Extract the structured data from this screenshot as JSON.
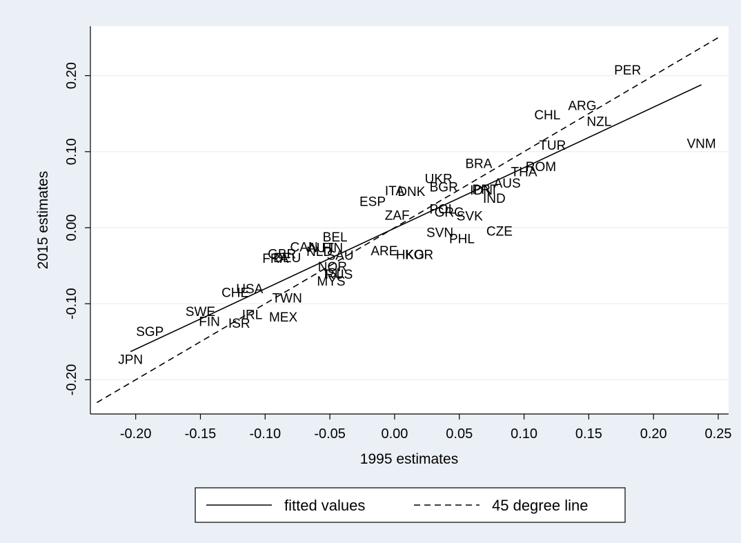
{
  "chart_data": {
    "type": "scatter",
    "xlabel": "1995 estimates",
    "ylabel": "2015 estimates",
    "xlim": [
      -0.235,
      0.258
    ],
    "ylim": [
      -0.245,
      0.265
    ],
    "xticks": [
      -0.2,
      -0.15,
      -0.1,
      -0.05,
      0.0,
      0.05,
      0.1,
      0.15,
      0.2,
      0.25
    ],
    "xtick_labels": [
      "-0.20",
      "-0.15",
      "-0.10",
      "-0.05",
      "0.00",
      "0.05",
      "0.10",
      "0.15",
      "0.20",
      "0.25"
    ],
    "yticks": [
      -0.2,
      -0.1,
      0.0,
      0.1,
      0.2
    ],
    "ytick_labels": [
      "-0.20",
      "-0.10",
      "0.00",
      "0.10",
      "0.20"
    ],
    "grid": true,
    "legend_position": "bottom",
    "points": [
      {
        "label": "PER",
        "x": 0.18,
        "y": 0.208
      },
      {
        "label": "ARG",
        "x": 0.145,
        "y": 0.161
      },
      {
        "label": "CHL",
        "x": 0.118,
        "y": 0.149
      },
      {
        "label": "NZL",
        "x": 0.158,
        "y": 0.14
      },
      {
        "label": "VNM",
        "x": 0.237,
        "y": 0.111
      },
      {
        "label": "TUR",
        "x": 0.122,
        "y": 0.109
      },
      {
        "label": "ROM",
        "x": 0.113,
        "y": 0.081
      },
      {
        "label": "THA",
        "x": 0.1,
        "y": 0.074
      },
      {
        "label": "BRA",
        "x": 0.065,
        "y": 0.085
      },
      {
        "label": "AUS",
        "x": 0.087,
        "y": 0.059
      },
      {
        "label": "UKR",
        "x": 0.034,
        "y": 0.065
      },
      {
        "label": "BGR",
        "x": 0.038,
        "y": 0.054
      },
      {
        "label": "IDN",
        "x": 0.067,
        "y": 0.05
      },
      {
        "label": "PRT",
        "x": 0.07,
        "y": 0.051
      },
      {
        "label": "IND",
        "x": 0.077,
        "y": 0.039
      },
      {
        "label": "ITA",
        "x": 0.0,
        "y": 0.049
      },
      {
        "label": "DNK",
        "x": 0.013,
        "y": 0.048
      },
      {
        "label": "ESP",
        "x": -0.017,
        "y": 0.035
      },
      {
        "label": "POL",
        "x": 0.037,
        "y": 0.025
      },
      {
        "label": "GRC",
        "x": 0.042,
        "y": 0.021
      },
      {
        "label": "SVK",
        "x": 0.058,
        "y": 0.016
      },
      {
        "label": "ZAF",
        "x": 0.002,
        "y": 0.017
      },
      {
        "label": "CZE",
        "x": 0.081,
        "y": -0.004
      },
      {
        "label": "SVN",
        "x": 0.035,
        "y": -0.006
      },
      {
        "label": "PHL",
        "x": 0.052,
        "y": -0.014
      },
      {
        "label": "BEL",
        "x": -0.046,
        "y": -0.012
      },
      {
        "label": "CAN",
        "x": -0.07,
        "y": -0.025
      },
      {
        "label": "AUT",
        "x": -0.057,
        "y": -0.026
      },
      {
        "label": "FIN",
        "x": -0.048,
        "y": -0.026
      },
      {
        "label": "NLD",
        "x": -0.058,
        "y": -0.031
      },
      {
        "label": "SAU",
        "x": -0.042,
        "y": -0.036
      },
      {
        "label": "ARE",
        "x": -0.008,
        "y": -0.03
      },
      {
        "label": "HKG",
        "x": 0.012,
        "y": -0.035
      },
      {
        "label": "KOR",
        "x": 0.019,
        "y": -0.035
      },
      {
        "label": "GBR",
        "x": -0.087,
        "y": -0.034
      },
      {
        "label": "DEU",
        "x": -0.083,
        "y": -0.039
      },
      {
        "label": "FRA",
        "x": -0.092,
        "y": -0.04
      },
      {
        "label": "NOR",
        "x": -0.048,
        "y": -0.051
      },
      {
        "label": "RUS",
        "x": -0.043,
        "y": -0.061
      },
      {
        "label": "ISL",
        "x": -0.047,
        "y": -0.059
      },
      {
        "label": "MYS",
        "x": -0.049,
        "y": -0.07
      },
      {
        "label": "USA",
        "x": -0.112,
        "y": -0.08
      },
      {
        "label": "CHE",
        "x": -0.123,
        "y": -0.085
      },
      {
        "label": "TWN",
        "x": -0.083,
        "y": -0.092
      },
      {
        "label": "SWE",
        "x": -0.15,
        "y": -0.11
      },
      {
        "label": "IRL",
        "x": -0.11,
        "y": -0.114
      },
      {
        "label": "MEX",
        "x": -0.086,
        "y": -0.117
      },
      {
        "label": "FIN",
        "x": -0.143,
        "y": -0.123
      },
      {
        "label": "ISR",
        "x": -0.12,
        "y": -0.125
      },
      {
        "label": "SGP",
        "x": -0.189,
        "y": -0.136
      },
      {
        "label": "JPN",
        "x": -0.204,
        "y": -0.173
      }
    ],
    "series": [
      {
        "name": "fitted values",
        "style": "solid",
        "x": [
          -0.204,
          0.237
        ],
        "y": [
          -0.163,
          0.188
        ]
      },
      {
        "name": "45 degree line",
        "style": "dashed",
        "x": [
          -0.23,
          0.25
        ],
        "y": [
          -0.23,
          0.25
        ]
      }
    ]
  },
  "legend": {
    "items": [
      "fitted values",
      "45 degree line"
    ]
  }
}
